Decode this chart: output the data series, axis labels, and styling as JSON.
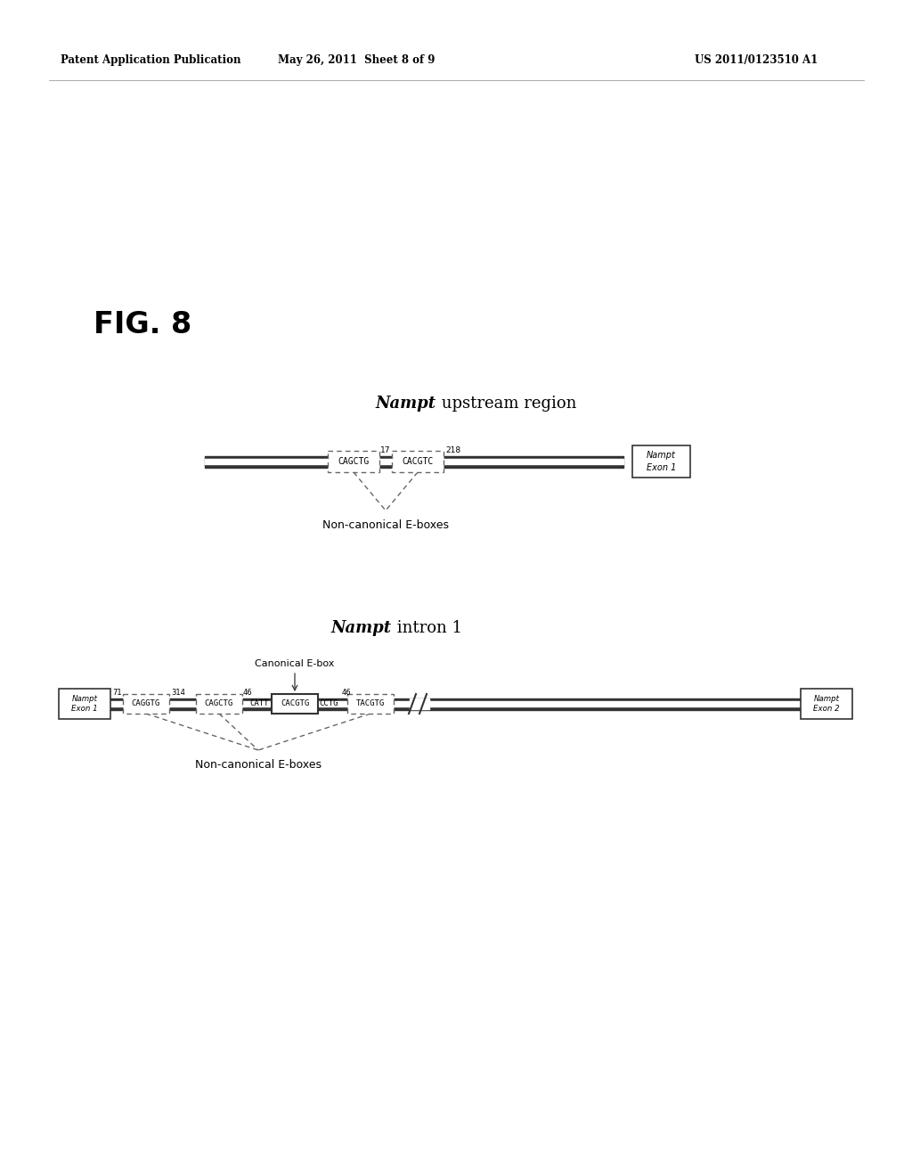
{
  "header_left": "Patent Application Publication",
  "header_mid": "May 26, 2011  Sheet 8 of 9",
  "header_right": "US 2011/0123510 A1",
  "fig_label": "FIG. 8",
  "d1_title_italic": "Nampt",
  "d1_title_rest": " upstream region",
  "d1_ebox1": "CAGCTG",
  "d1_ebox2": "CACGTC",
  "d1_dist1": "17",
  "d1_dist2": "218",
  "d1_nampt_label": "Nampt\nExon 1",
  "d1_annotation": "Non-canonical E-boxes",
  "d2_title_italic": "Nampt",
  "d2_title_rest": " intron 1",
  "d2_nampt_exon1": "Nampt\nExon 1",
  "d2_ebox1": "CAGGTG",
  "d2_dist1": "71",
  "d2_ebox2": "CAGCTG",
  "d2_dist2": "314",
  "d2_dist3": "46",
  "d2_prefix": "CATT",
  "d2_canonical": "CACGTG",
  "d2_suffix": "CCTG",
  "d2_ebox3": "TACGTG",
  "d2_dist4": "46",
  "d2_canonical_label": "Canonical E-box",
  "d2_annotation": "Non-canonical E-boxes",
  "d2_nampt_exon2": "Nampt\nExon 2",
  "bg_color": "#ffffff",
  "text_color": "#000000",
  "dark_color": "#333333",
  "gray_color": "#666666"
}
